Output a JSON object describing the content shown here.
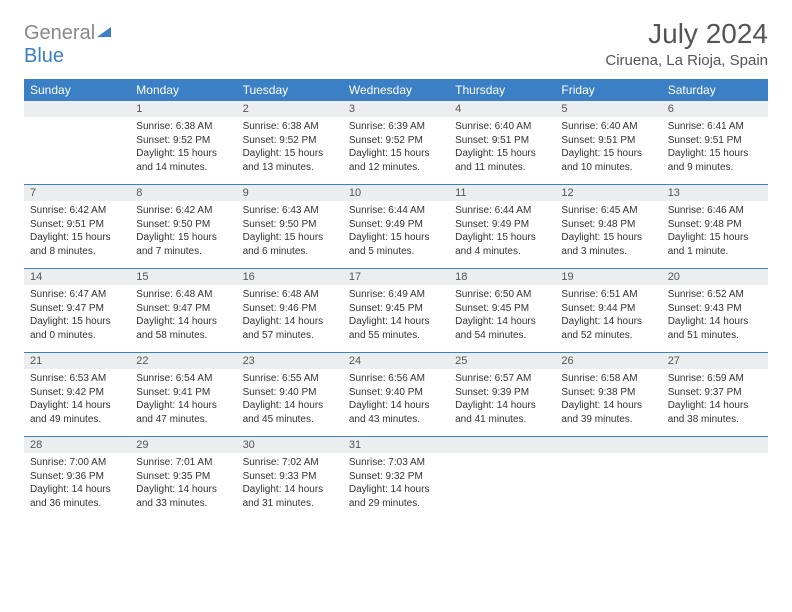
{
  "brand": {
    "part1": "General",
    "part2": "Blue"
  },
  "title": "July 2024",
  "location": "Ciruena, La Rioja, Spain",
  "weekdays": [
    "Sunday",
    "Monday",
    "Tuesday",
    "Wednesday",
    "Thursday",
    "Friday",
    "Saturday"
  ],
  "colors": {
    "header_bg": "#3b7fc4",
    "header_text": "#ffffff",
    "daynum_bg": "#ecedee",
    "border": "#3b7fc4",
    "text": "#333333",
    "title_text": "#555555"
  },
  "weeks": [
    [
      {
        "num": "",
        "lines": []
      },
      {
        "num": "1",
        "lines": [
          "Sunrise: 6:38 AM",
          "Sunset: 9:52 PM",
          "Daylight: 15 hours and 14 minutes."
        ]
      },
      {
        "num": "2",
        "lines": [
          "Sunrise: 6:38 AM",
          "Sunset: 9:52 PM",
          "Daylight: 15 hours and 13 minutes."
        ]
      },
      {
        "num": "3",
        "lines": [
          "Sunrise: 6:39 AM",
          "Sunset: 9:52 PM",
          "Daylight: 15 hours and 12 minutes."
        ]
      },
      {
        "num": "4",
        "lines": [
          "Sunrise: 6:40 AM",
          "Sunset: 9:51 PM",
          "Daylight: 15 hours and 11 minutes."
        ]
      },
      {
        "num": "5",
        "lines": [
          "Sunrise: 6:40 AM",
          "Sunset: 9:51 PM",
          "Daylight: 15 hours and 10 minutes."
        ]
      },
      {
        "num": "6",
        "lines": [
          "Sunrise: 6:41 AM",
          "Sunset: 9:51 PM",
          "Daylight: 15 hours and 9 minutes."
        ]
      }
    ],
    [
      {
        "num": "7",
        "lines": [
          "Sunrise: 6:42 AM",
          "Sunset: 9:51 PM",
          "Daylight: 15 hours and 8 minutes."
        ]
      },
      {
        "num": "8",
        "lines": [
          "Sunrise: 6:42 AM",
          "Sunset: 9:50 PM",
          "Daylight: 15 hours and 7 minutes."
        ]
      },
      {
        "num": "9",
        "lines": [
          "Sunrise: 6:43 AM",
          "Sunset: 9:50 PM",
          "Daylight: 15 hours and 6 minutes."
        ]
      },
      {
        "num": "10",
        "lines": [
          "Sunrise: 6:44 AM",
          "Sunset: 9:49 PM",
          "Daylight: 15 hours and 5 minutes."
        ]
      },
      {
        "num": "11",
        "lines": [
          "Sunrise: 6:44 AM",
          "Sunset: 9:49 PM",
          "Daylight: 15 hours and 4 minutes."
        ]
      },
      {
        "num": "12",
        "lines": [
          "Sunrise: 6:45 AM",
          "Sunset: 9:48 PM",
          "Daylight: 15 hours and 3 minutes."
        ]
      },
      {
        "num": "13",
        "lines": [
          "Sunrise: 6:46 AM",
          "Sunset: 9:48 PM",
          "Daylight: 15 hours and 1 minute."
        ]
      }
    ],
    [
      {
        "num": "14",
        "lines": [
          "Sunrise: 6:47 AM",
          "Sunset: 9:47 PM",
          "Daylight: 15 hours and 0 minutes."
        ]
      },
      {
        "num": "15",
        "lines": [
          "Sunrise: 6:48 AM",
          "Sunset: 9:47 PM",
          "Daylight: 14 hours and 58 minutes."
        ]
      },
      {
        "num": "16",
        "lines": [
          "Sunrise: 6:48 AM",
          "Sunset: 9:46 PM",
          "Daylight: 14 hours and 57 minutes."
        ]
      },
      {
        "num": "17",
        "lines": [
          "Sunrise: 6:49 AM",
          "Sunset: 9:45 PM",
          "Daylight: 14 hours and 55 minutes."
        ]
      },
      {
        "num": "18",
        "lines": [
          "Sunrise: 6:50 AM",
          "Sunset: 9:45 PM",
          "Daylight: 14 hours and 54 minutes."
        ]
      },
      {
        "num": "19",
        "lines": [
          "Sunrise: 6:51 AM",
          "Sunset: 9:44 PM",
          "Daylight: 14 hours and 52 minutes."
        ]
      },
      {
        "num": "20",
        "lines": [
          "Sunrise: 6:52 AM",
          "Sunset: 9:43 PM",
          "Daylight: 14 hours and 51 minutes."
        ]
      }
    ],
    [
      {
        "num": "21",
        "lines": [
          "Sunrise: 6:53 AM",
          "Sunset: 9:42 PM",
          "Daylight: 14 hours and 49 minutes."
        ]
      },
      {
        "num": "22",
        "lines": [
          "Sunrise: 6:54 AM",
          "Sunset: 9:41 PM",
          "Daylight: 14 hours and 47 minutes."
        ]
      },
      {
        "num": "23",
        "lines": [
          "Sunrise: 6:55 AM",
          "Sunset: 9:40 PM",
          "Daylight: 14 hours and 45 minutes."
        ]
      },
      {
        "num": "24",
        "lines": [
          "Sunrise: 6:56 AM",
          "Sunset: 9:40 PM",
          "Daylight: 14 hours and 43 minutes."
        ]
      },
      {
        "num": "25",
        "lines": [
          "Sunrise: 6:57 AM",
          "Sunset: 9:39 PM",
          "Daylight: 14 hours and 41 minutes."
        ]
      },
      {
        "num": "26",
        "lines": [
          "Sunrise: 6:58 AM",
          "Sunset: 9:38 PM",
          "Daylight: 14 hours and 39 minutes."
        ]
      },
      {
        "num": "27",
        "lines": [
          "Sunrise: 6:59 AM",
          "Sunset: 9:37 PM",
          "Daylight: 14 hours and 38 minutes."
        ]
      }
    ],
    [
      {
        "num": "28",
        "lines": [
          "Sunrise: 7:00 AM",
          "Sunset: 9:36 PM",
          "Daylight: 14 hours and 36 minutes."
        ]
      },
      {
        "num": "29",
        "lines": [
          "Sunrise: 7:01 AM",
          "Sunset: 9:35 PM",
          "Daylight: 14 hours and 33 minutes."
        ]
      },
      {
        "num": "30",
        "lines": [
          "Sunrise: 7:02 AM",
          "Sunset: 9:33 PM",
          "Daylight: 14 hours and 31 minutes."
        ]
      },
      {
        "num": "31",
        "lines": [
          "Sunrise: 7:03 AM",
          "Sunset: 9:32 PM",
          "Daylight: 14 hours and 29 minutes."
        ]
      },
      {
        "num": "",
        "lines": []
      },
      {
        "num": "",
        "lines": []
      },
      {
        "num": "",
        "lines": []
      }
    ]
  ]
}
